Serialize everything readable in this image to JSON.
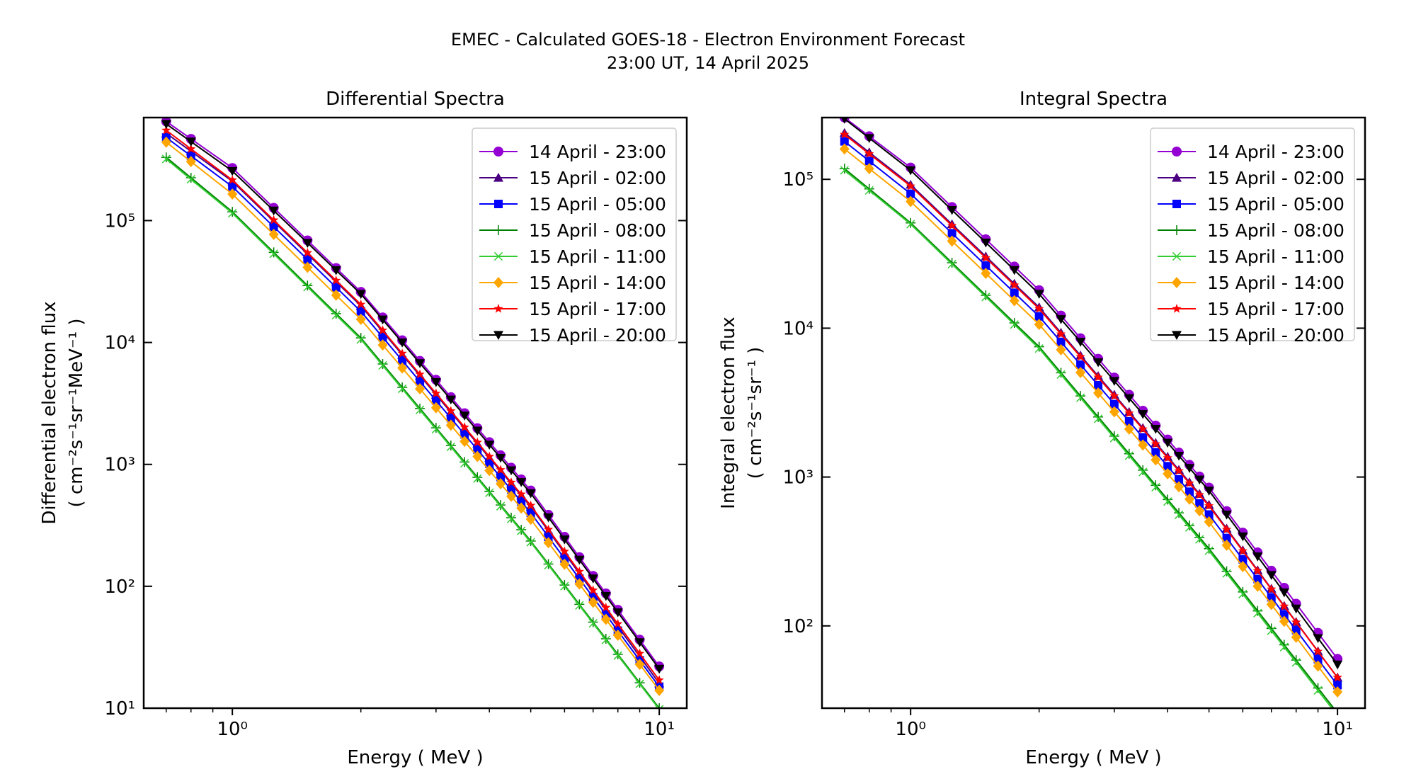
{
  "suptitle": "EMEC - Calculated GOES-18 - Electron Environment Forecast",
  "subtitle": "23:00 UT, 14 April 2025",
  "legend_labels": [
    "14 April - 23:00",
    "15 April - 02:00",
    "15 April - 05:00",
    "15 April - 08:00",
    "15 April - 11:00",
    "15 April - 14:00",
    "15 April - 17:00",
    "15 April - 20:00"
  ],
  "series_styles": [
    {
      "color": "#9400D3",
      "marker": "circle"
    },
    {
      "color": "#4B0082",
      "marker": "triangle-up"
    },
    {
      "color": "#0000FF",
      "marker": "square"
    },
    {
      "color": "#008000",
      "marker": "plus"
    },
    {
      "color": "#32CD32",
      "marker": "x"
    },
    {
      "color": "#FFA500",
      "marker": "diamond"
    },
    {
      "color": "#FF0000",
      "marker": "star"
    },
    {
      "color": "#000000",
      "marker": "triangle-down"
    }
  ],
  "chart_data": [
    {
      "type": "line",
      "title": "Differential Spectra",
      "xlabel": "Energy ( MeV )",
      "ylabel_line1": "Differential electron flux",
      "ylabel_line2": "( cm⁻²s⁻¹sr⁻¹MeV⁻¹ )",
      "xscale": "log",
      "yscale": "log",
      "xlim": [
        0.62,
        11.6
      ],
      "ylim": [
        10,
        700000
      ],
      "xticks": [
        {
          "value": 1,
          "label": "10⁰"
        },
        {
          "value": 10,
          "label": "10¹"
        }
      ],
      "yticks": [
        {
          "value": 10,
          "label": "10¹"
        },
        {
          "value": 100,
          "label": "10²"
        },
        {
          "value": 1000,
          "label": "10³"
        },
        {
          "value": 10000,
          "label": "10⁴"
        },
        {
          "value": 100000,
          "label": "10⁵"
        }
      ],
      "legend": "top-right",
      "grid": false,
      "series": [
        {
          "name": "14 April - 23:00",
          "anchors": {
            "x": [
              0.7,
              1.0,
              2.0,
              5.0,
              10.0
            ],
            "y": [
              650000,
              270000,
              26000,
              610,
              22
            ]
          }
        },
        {
          "name": "15 April - 02:00",
          "anchors": {
            "x": [
              0.7,
              1.0,
              2.0,
              5.0,
              10.0
            ],
            "y": [
              520000,
              210000,
              20000,
              450,
              16
            ]
          }
        },
        {
          "name": "15 April - 05:00",
          "anchors": {
            "x": [
              0.7,
              1.0,
              2.0,
              5.0,
              10.0
            ],
            "y": [
              480000,
              190000,
              18000,
              400,
              15
            ]
          }
        },
        {
          "name": "15 April - 08:00",
          "anchors": {
            "x": [
              0.7,
              1.0,
              2.0,
              5.0,
              10.0
            ],
            "y": [
              330000,
              118000,
              10900,
              235,
              10
            ]
          }
        },
        {
          "name": "15 April - 11:00",
          "anchors": {
            "x": [
              0.7,
              1.0,
              2.0,
              5.0,
              10.0
            ],
            "y": [
              320000,
              115000,
              10600,
              230,
              9.8
            ]
          }
        },
        {
          "name": "15 April - 14:00",
          "anchors": {
            "x": [
              0.7,
              1.0,
              2.0,
              5.0,
              10.0
            ],
            "y": [
              440000,
              165000,
              15500,
              355,
              14
            ]
          }
        },
        {
          "name": "15 April - 17:00",
          "anchors": {
            "x": [
              0.7,
              1.0,
              2.0,
              5.0,
              10.0
            ],
            "y": [
              550000,
              215000,
              20500,
              460,
              17
            ]
          }
        },
        {
          "name": "15 April - 20:00",
          "anchors": {
            "x": [
              0.7,
              1.0,
              2.0,
              5.0,
              10.0
            ],
            "y": [
              620000,
              255000,
              25000,
              580,
              21
            ]
          }
        }
      ]
    },
    {
      "type": "line",
      "title": "Integral Spectra",
      "xlabel": "Energy ( MeV )",
      "ylabel_line1": "Integral electron flux",
      "ylabel_line2": "( cm⁻²s⁻¹sr⁻¹ )",
      "xscale": "log",
      "yscale": "log",
      "xlim": [
        0.62,
        11.6
      ],
      "ylim": [
        28,
        260000
      ],
      "xticks": [
        {
          "value": 1,
          "label": "10⁰"
        },
        {
          "value": 10,
          "label": "10¹"
        }
      ],
      "yticks": [
        {
          "value": 100,
          "label": "10²"
        },
        {
          "value": 1000,
          "label": "10³"
        },
        {
          "value": 10000,
          "label": "10⁴"
        },
        {
          "value": 100000,
          "label": "10⁵"
        }
      ],
      "legend": "top-right",
      "grid": false,
      "series": [
        {
          "name": "14 April - 23:00",
          "anchors": {
            "x": [
              0.7,
              1.0,
              2.0,
              5.0,
              10.0
            ],
            "y": [
              260000,
              120000,
              18000,
              850,
              60
            ]
          }
        },
        {
          "name": "15 April - 02:00",
          "anchors": {
            "x": [
              0.7,
              1.0,
              2.0,
              5.0,
              10.0
            ],
            "y": [
              205000,
              92000,
              13800,
              650,
              45
            ]
          }
        },
        {
          "name": "15 April - 05:00",
          "anchors": {
            "x": [
              0.7,
              1.0,
              2.0,
              5.0,
              10.0
            ],
            "y": [
              180000,
              80000,
              12000,
              560,
              40
            ]
          }
        },
        {
          "name": "15 April - 08:00",
          "anchors": {
            "x": [
              0.7,
              1.0,
              2.0,
              5.0,
              10.0
            ],
            "y": [
              118000,
              51000,
              7500,
              330,
              26
            ]
          }
        },
        {
          "name": "15 April - 11:00",
          "anchors": {
            "x": [
              0.7,
              1.0,
              2.0,
              5.0,
              10.0
            ],
            "y": [
              115000,
              50000,
              7300,
              320,
              25
            ]
          }
        },
        {
          "name": "15 April - 14:00",
          "anchors": {
            "x": [
              0.7,
              1.0,
              2.0,
              5.0,
              10.0
            ],
            "y": [
              160000,
              71000,
              10600,
              500,
              36
            ]
          }
        },
        {
          "name": "15 April - 17:00",
          "anchors": {
            "x": [
              0.7,
              1.0,
              2.0,
              5.0,
              10.0
            ],
            "y": [
              200000,
              90000,
              13500,
              640,
              45
            ]
          }
        },
        {
          "name": "15 April - 20:00",
          "anchors": {
            "x": [
              0.7,
              1.0,
              2.0,
              5.0,
              10.0
            ],
            "y": [
              255000,
              115000,
              17000,
              810,
              55
            ]
          }
        }
      ]
    }
  ]
}
